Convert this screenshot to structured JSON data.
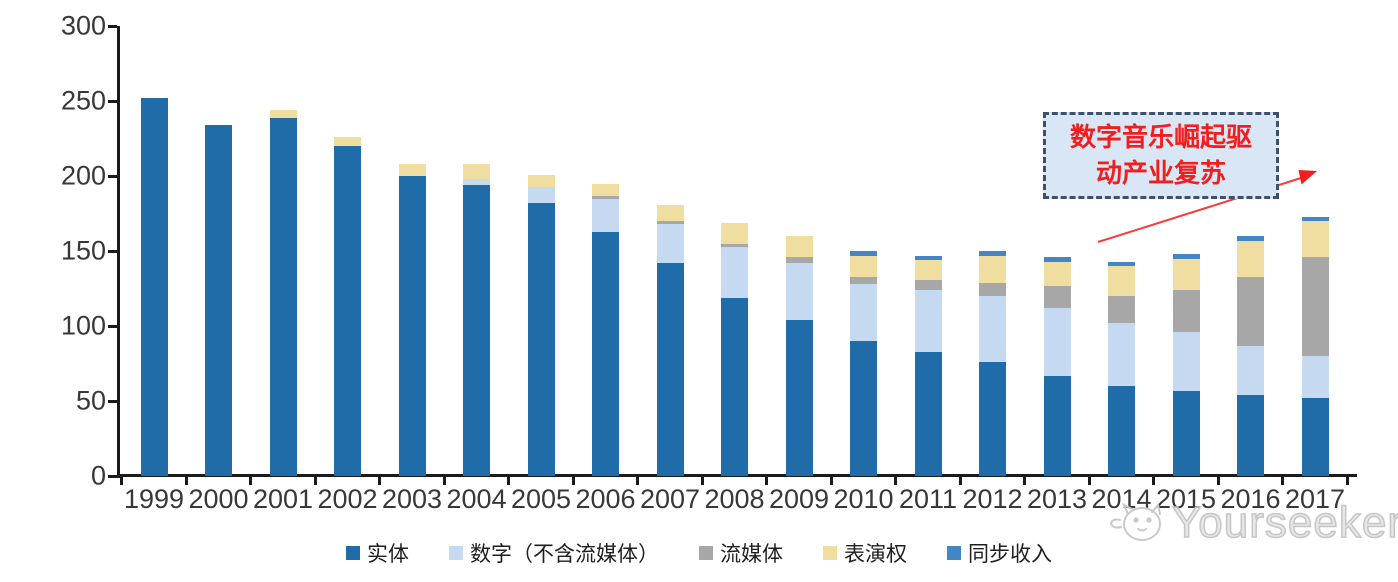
{
  "chart_data": {
    "type": "bar",
    "stacked": true,
    "title": "",
    "categories": [
      "1999",
      "2000",
      "2001",
      "2002",
      "2003",
      "2004",
      "2005",
      "2006",
      "2007",
      "2008",
      "2009",
      "2010",
      "2011",
      "2012",
      "2013",
      "2014",
      "2015",
      "2016",
      "2017"
    ],
    "series": [
      {
        "key": "physical",
        "name": "实体",
        "color": "#1f6ca9",
        "values": [
          252,
          234,
          239,
          220,
          200,
          194,
          182,
          163,
          142,
          119,
          104,
          90,
          83,
          76,
          67,
          60,
          57,
          54,
          52
        ]
      },
      {
        "key": "digital",
        "name": "数字（不含流媒体）",
        "color": "#c5d9f0",
        "values": [
          0,
          0,
          0,
          0,
          0,
          4,
          11,
          22,
          26,
          34,
          38,
          38,
          41,
          44,
          45,
          42,
          39,
          33,
          28
        ]
      },
      {
        "key": "streaming",
        "name": "流媒体",
        "color": "#a7a7a7",
        "values": [
          0,
          0,
          0,
          0,
          0,
          0,
          0,
          2,
          2,
          2,
          4,
          5,
          7,
          9,
          15,
          18,
          28,
          46,
          66
        ]
      },
      {
        "key": "performance",
        "name": "表演权",
        "color": "#f0dda0",
        "values": [
          0,
          0,
          5,
          6,
          8,
          10,
          8,
          8,
          11,
          14,
          14,
          14,
          13,
          18,
          16,
          20,
          21,
          24,
          24
        ]
      },
      {
        "key": "sync",
        "name": "同步收入",
        "color": "#4485c7",
        "values": [
          0,
          0,
          0,
          0,
          0,
          0,
          0,
          0,
          0,
          0,
          0,
          3,
          3,
          3,
          3,
          3,
          3,
          3,
          3
        ]
      }
    ],
    "xlabel": "",
    "ylabel": "",
    "ylim": [
      0,
      300
    ],
    "yticks": [
      0,
      50,
      100,
      150,
      200,
      250,
      300
    ],
    "grid": false,
    "legend_position": "bottom"
  },
  "annotation": {
    "line1": "数字音乐崛起驱",
    "line2": "动产业复苏",
    "text_color": "#f21d1d",
    "box_fill": "#d9e6f5",
    "box_border": "#3f5168",
    "arrow_color": "#f93a3a"
  },
  "watermark": {
    "brand": "Yourseeker"
  }
}
